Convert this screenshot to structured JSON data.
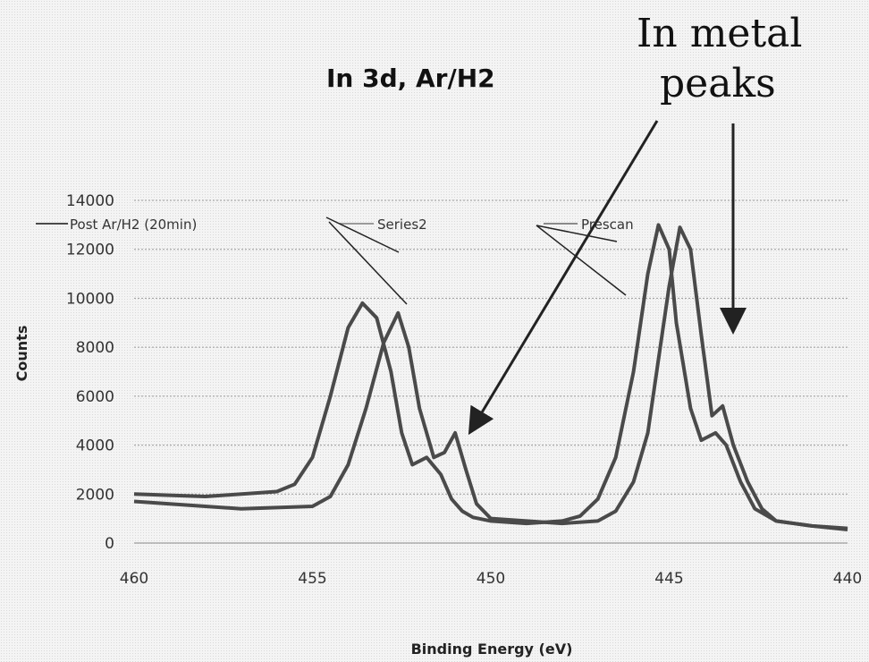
{
  "chart_data": {
    "type": "line",
    "title": "In 3d, Ar/H2",
    "xlabel": "Binding Energy (eV)",
    "ylabel": "Counts",
    "xlim": [
      460,
      440
    ],
    "x_reversed": true,
    "ylim": [
      0,
      14000
    ],
    "x_ticks": [
      460,
      455,
      450,
      445,
      440
    ],
    "y_ticks": [
      0,
      2000,
      4000,
      6000,
      8000,
      10000,
      12000,
      14000
    ],
    "x_tick_labels": [
      "460",
      "455",
      "450",
      "445",
      "440"
    ],
    "y_tick_labels": [
      "0",
      "2000",
      "4000",
      "6000",
      "8000",
      "10000",
      "12000",
      "14000"
    ],
    "grid": "horizontal",
    "legend_position": "top",
    "series": [
      {
        "name": "Post Ar/H2 (20min)",
        "x": [
          460,
          458,
          456,
          455.5,
          455,
          454.5,
          454,
          453.6,
          453.2,
          452.8,
          452.5,
          452.2,
          451.8,
          451.4,
          451.1,
          450.8,
          450.5,
          450,
          449,
          448,
          447.5,
          447,
          446.5,
          446,
          445.6,
          445.3,
          445,
          444.8,
          444.4,
          444.1,
          443.7,
          443.4,
          443,
          442.6,
          442,
          441,
          440
        ],
        "y": [
          2000,
          1900,
          2100,
          2400,
          3500,
          6000,
          8800,
          9800,
          9200,
          7000,
          4500,
          3200,
          3500,
          2800,
          1800,
          1300,
          1050,
          900,
          800,
          900,
          1100,
          1800,
          3500,
          7000,
          11000,
          13000,
          12000,
          9000,
          5500,
          4200,
          4500,
          4000,
          2500,
          1400,
          900,
          700,
          600
        ]
      },
      {
        "name": "Series2",
        "x": [
          460,
          457,
          455,
          454.5,
          454,
          453.5,
          453,
          452.6,
          452.3,
          452,
          451.6,
          451.3,
          451,
          450.7,
          450.4,
          450,
          449,
          448,
          447,
          446.5,
          446,
          445.6,
          445.3,
          445,
          444.7,
          444.4,
          444.1,
          443.8,
          443.5,
          443.2,
          442.8,
          442.4,
          442,
          441,
          440
        ],
        "y": [
          1700,
          1400,
          1500,
          1900,
          3200,
          5500,
          8200,
          9400,
          8000,
          5500,
          3500,
          3700,
          4500,
          3000,
          1600,
          1000,
          900,
          800,
          900,
          1300,
          2500,
          4500,
          7500,
          10500,
          12900,
          12000,
          8500,
          5200,
          5600,
          4000,
          2500,
          1400,
          900,
          700,
          550
        ]
      },
      {
        "name": "Prescan",
        "x": [
          460,
          445,
          440
        ],
        "y": [
          null,
          null,
          null
        ]
      }
    ],
    "annotations": [
      {
        "text": "In metal",
        "line": 1
      },
      {
        "text": "peaks",
        "line": 2
      }
    ]
  }
}
